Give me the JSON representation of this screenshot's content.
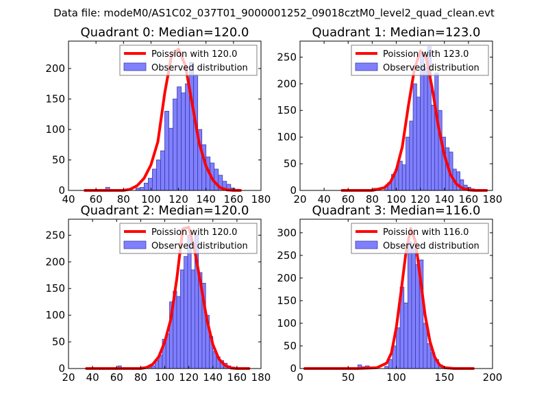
{
  "figure": {
    "suptitle": "Data file: modeM0/AS1C02_037T01_9000001252_09018cztM0_level2_quad_clean.evt",
    "colors": {
      "bar_fill": "#8080ff",
      "bar_edge": "#3a3aa8",
      "curve": "#ff0000",
      "frame": "#000000",
      "legend_edge": "#7f7f7f"
    }
  },
  "chart_data": [
    {
      "type": "bar",
      "title": "Quadrant 0: Median=120.0",
      "xlim": [
        40,
        180
      ],
      "ylim": [
        0,
        245
      ],
      "xticks": [
        40,
        60,
        80,
        100,
        120,
        140,
        160,
        180
      ],
      "yticks": [
        0,
        50,
        100,
        150,
        200
      ],
      "legend": {
        "placement": "upper-right",
        "curve_label": "Poission with 120.0",
        "bars_label": "Observed distribution"
      },
      "series": [
        {
          "name": "Observed distribution",
          "kind": "histogram",
          "bins": [
            [
              67,
              70,
              5
            ],
            [
              80,
              83,
              2
            ],
            [
              89,
              92,
              4
            ],
            [
              92,
              95,
              5
            ],
            [
              95,
              98,
              12
            ],
            [
              98,
              101,
              20
            ],
            [
              101,
              104,
              35
            ],
            [
              104,
              107,
              50
            ],
            [
              107,
              110,
              65
            ],
            [
              110,
              113,
              130
            ],
            [
              113,
              116,
              102
            ],
            [
              116,
              119,
              150
            ],
            [
              119,
              122,
              170
            ],
            [
              122,
              125,
              160
            ],
            [
              125,
              128,
              175
            ],
            [
              128,
              131,
              210
            ],
            [
              131,
              134,
              190
            ],
            [
              134,
              137,
              100
            ],
            [
              137,
              140,
              75
            ],
            [
              140,
              143,
              55
            ],
            [
              143,
              146,
              45
            ],
            [
              146,
              149,
              35
            ],
            [
              149,
              152,
              25
            ],
            [
              152,
              155,
              15
            ],
            [
              155,
              158,
              10
            ],
            [
              158,
              161,
              4
            ],
            [
              161,
              164,
              2
            ]
          ]
        },
        {
          "name": "Poission with 120.0",
          "kind": "curve",
          "x": [
            52,
            60,
            70,
            80,
            85,
            90,
            95,
            100,
            105,
            110,
            115,
            120,
            125,
            130,
            135,
            140,
            145,
            150,
            155,
            160,
            165
          ],
          "y": [
            0,
            0,
            0,
            0,
            2,
            8,
            20,
            42,
            80,
            160,
            222,
            232,
            205,
            142,
            78,
            40,
            17,
            5,
            1,
            0,
            0
          ]
        }
      ]
    },
    {
      "type": "bar",
      "title": "Quadrant 1: Median=123.0",
      "xlim": [
        20,
        180
      ],
      "ylim": [
        0,
        280
      ],
      "xticks": [
        20,
        40,
        60,
        80,
        100,
        120,
        140,
        160,
        180
      ],
      "yticks": [
        0,
        50,
        100,
        150,
        200,
        250
      ],
      "legend": {
        "placement": "upper-right",
        "curve_label": "Poission with 123.0",
        "bars_label": "Observed distribution"
      },
      "series": [
        {
          "name": "Observed distribution",
          "kind": "histogram",
          "bins": [
            [
              66,
              69,
              2
            ],
            [
              81,
              84,
              4
            ],
            [
              90,
              93,
              8
            ],
            [
              93,
              96,
              15
            ],
            [
              96,
              99,
              30
            ],
            [
              99,
              102,
              40
            ],
            [
              102,
              105,
              55
            ],
            [
              105,
              108,
              48
            ],
            [
              108,
              111,
              100
            ],
            [
              111,
              114,
              130
            ],
            [
              114,
              117,
              200
            ],
            [
              117,
              120,
              175
            ],
            [
              120,
              123,
              258
            ],
            [
              123,
              126,
              230
            ],
            [
              126,
              129,
              270
            ],
            [
              129,
              132,
              160
            ],
            [
              132,
              135,
              220
            ],
            [
              135,
              138,
              150
            ],
            [
              138,
              141,
              100
            ],
            [
              141,
              144,
              80
            ],
            [
              144,
              147,
              72
            ],
            [
              147,
              150,
              40
            ],
            [
              150,
              153,
              35
            ],
            [
              153,
              156,
              20
            ],
            [
              156,
              159,
              10
            ],
            [
              159,
              162,
              6
            ],
            [
              162,
              165,
              3
            ]
          ]
        },
        {
          "name": "Poission with 123.0",
          "kind": "curve",
          "x": [
            55,
            60,
            70,
            80,
            90,
            95,
            100,
            105,
            110,
            115,
            120,
            125,
            130,
            135,
            140,
            145,
            150,
            155,
            160,
            165,
            170,
            175
          ],
          "y": [
            0,
            0,
            0,
            0,
            5,
            15,
            38,
            82,
            158,
            226,
            262,
            248,
            190,
            120,
            66,
            30,
            12,
            4,
            1,
            0,
            0,
            0
          ]
        }
      ]
    },
    {
      "type": "bar",
      "title": "Quadrant 2: Median=120.0",
      "xlim": [
        20,
        180
      ],
      "ylim": [
        0,
        280
      ],
      "xticks": [
        20,
        40,
        60,
        80,
        100,
        120,
        140,
        160,
        180
      ],
      "yticks": [
        0,
        50,
        100,
        150,
        200,
        250
      ],
      "legend": {
        "placement": "upper-right",
        "curve_label": "Poission with 120.0",
        "bars_label": "Observed distribution"
      },
      "series": [
        {
          "name": "Observed distribution",
          "kind": "histogram",
          "bins": [
            [
              61,
              64,
              5
            ],
            [
              81,
              84,
              3
            ],
            [
              86,
              89,
              3
            ],
            [
              89,
              92,
              5
            ],
            [
              92,
              95,
              15
            ],
            [
              95,
              98,
              25
            ],
            [
              98,
              101,
              55
            ],
            [
              101,
              104,
              65
            ],
            [
              104,
              107,
              125
            ],
            [
              107,
              110,
              145
            ],
            [
              110,
              113,
              135
            ],
            [
              113,
              116,
              185
            ],
            [
              116,
              119,
              210
            ],
            [
              119,
              122,
              250
            ],
            [
              122,
              125,
              185
            ],
            [
              125,
              128,
              250
            ],
            [
              128,
              131,
              180
            ],
            [
              131,
              134,
              160
            ],
            [
              134,
              137,
              100
            ],
            [
              137,
              140,
              60
            ],
            [
              140,
              143,
              32
            ],
            [
              143,
              146,
              22
            ],
            [
              146,
              149,
              15
            ],
            [
              149,
              152,
              10
            ],
            [
              152,
              155,
              5
            ],
            [
              155,
              158,
              3
            ],
            [
              158,
              161,
              2
            ]
          ]
        },
        {
          "name": "Poission with 120.0",
          "kind": "curve",
          "x": [
            35,
            50,
            60,
            70,
            80,
            85,
            90,
            95,
            100,
            105,
            110,
            115,
            120,
            125,
            130,
            135,
            140,
            145,
            150,
            155,
            160,
            165,
            170
          ],
          "y": [
            0,
            0,
            0,
            0,
            0,
            2,
            8,
            22,
            50,
            92,
            168,
            262,
            265,
            220,
            158,
            92,
            45,
            18,
            6,
            1,
            0,
            0,
            0
          ]
        }
      ]
    },
    {
      "type": "bar",
      "title": "Quadrant 3: Median=116.0",
      "xlim": [
        0,
        200
      ],
      "ylim": [
        0,
        330
      ],
      "xticks": [
        0,
        50,
        100,
        150,
        200
      ],
      "yticks": [
        0,
        50,
        100,
        150,
        200,
        250,
        300
      ],
      "legend": {
        "placement": "upper-right",
        "curve_label": "Poission with 116.0",
        "bars_label": "Observed distribution"
      },
      "series": [
        {
          "name": "Observed distribution",
          "kind": "histogram",
          "bins": [
            [
              60,
              64,
              8
            ],
            [
              64,
              68,
              4
            ],
            [
              68,
              72,
              6
            ],
            [
              72,
              76,
              3
            ],
            [
              88,
              92,
              5
            ],
            [
              92,
              96,
              20
            ],
            [
              96,
              100,
              50
            ],
            [
              100,
              104,
              90
            ],
            [
              104,
              108,
              180
            ],
            [
              108,
              112,
              145
            ],
            [
              112,
              116,
              280
            ],
            [
              116,
              120,
              265
            ],
            [
              120,
              124,
              230
            ],
            [
              124,
              128,
              240
            ],
            [
              128,
              132,
              100
            ],
            [
              132,
              136,
              55
            ],
            [
              136,
              140,
              35
            ],
            [
              140,
              144,
              20
            ],
            [
              144,
              148,
              8
            ],
            [
              148,
              152,
              4
            ]
          ]
        },
        {
          "name": "Poission with 116.0",
          "kind": "curve",
          "x": [
            5,
            20,
            40,
            60,
            80,
            90,
            95,
            100,
            105,
            110,
            115,
            120,
            125,
            130,
            135,
            140,
            145,
            150,
            160,
            170,
            180
          ],
          "y": [
            0,
            0,
            0,
            0,
            2,
            12,
            35,
            90,
            170,
            255,
            310,
            280,
            200,
            118,
            60,
            25,
            8,
            2,
            0,
            0,
            0
          ]
        }
      ]
    }
  ]
}
